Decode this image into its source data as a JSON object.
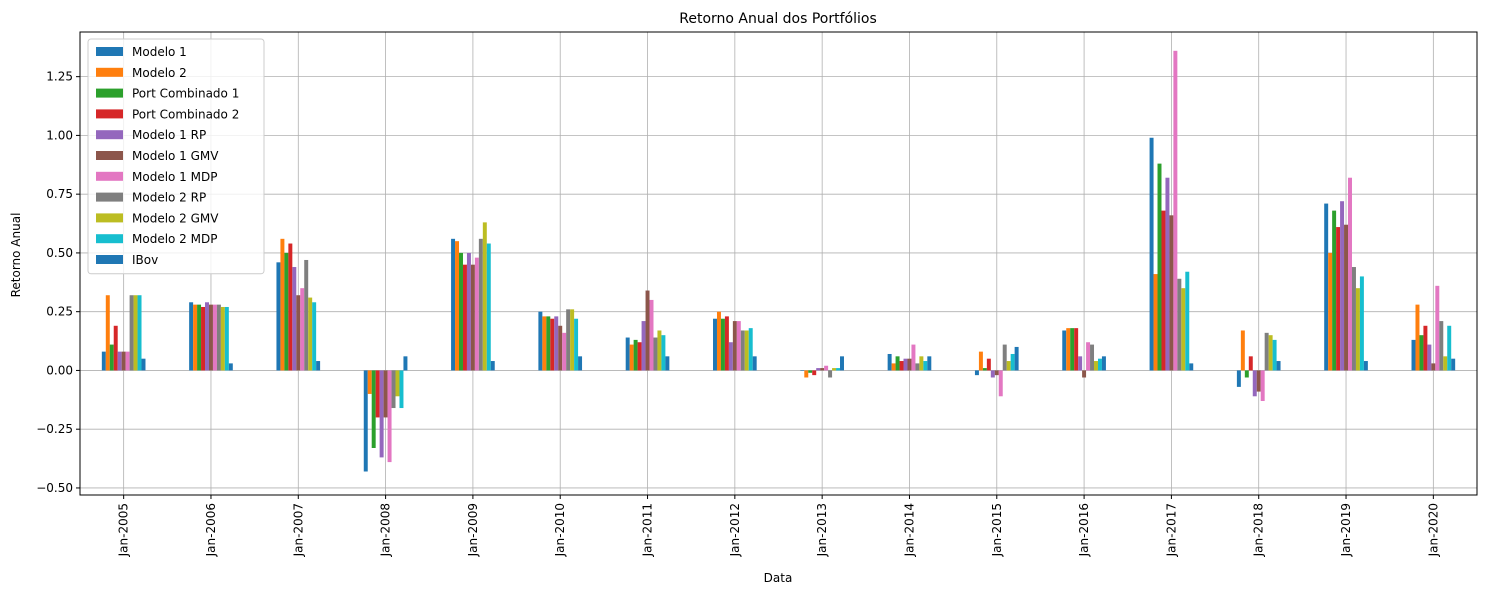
{
  "chart_data": {
    "type": "bar",
    "title": "Retorno Anual dos Portfólios",
    "xlabel": "Data",
    "ylabel": "Retorno Anual",
    "ylim": [
      -0.53,
      1.44
    ],
    "yticks": [
      -0.5,
      -0.25,
      0.0,
      0.25,
      0.5,
      0.75,
      1.0,
      1.25
    ],
    "ytick_labels": [
      "−0.50",
      "−0.25",
      "0.00",
      "0.25",
      "0.50",
      "0.75",
      "1.00",
      "1.25"
    ],
    "grid": true,
    "legend_position": "upper-left",
    "categories": [
      "Jan-2005",
      "Jan-2006",
      "Jan-2007",
      "Jan-2008",
      "Jan-2009",
      "Jan-2010",
      "Jan-2011",
      "Jan-2012",
      "Jan-2013",
      "Jan-2014",
      "Jan-2015",
      "Jan-2016",
      "Jan-2017",
      "Jan-2018",
      "Jan-2019",
      "Jan-2020"
    ],
    "series": [
      {
        "name": "Modelo 1",
        "color": "#1f77b4",
        "values": [
          0.08,
          0.29,
          0.46,
          -0.43,
          0.56,
          0.25,
          0.14,
          0.22,
          0.0,
          0.07,
          -0.02,
          0.17,
          0.99,
          -0.07,
          0.71,
          0.13
        ]
      },
      {
        "name": "Modelo 2",
        "color": "#ff7f0e",
        "values": [
          0.32,
          0.28,
          0.56,
          -0.1,
          0.55,
          0.23,
          0.11,
          0.25,
          -0.03,
          0.03,
          0.08,
          0.18,
          0.41,
          0.17,
          0.5,
          0.28
        ]
      },
      {
        "name": "Port Combinado 1",
        "color": "#2ca02c",
        "values": [
          0.11,
          0.28,
          0.5,
          -0.33,
          0.5,
          0.23,
          0.13,
          0.22,
          -0.01,
          0.06,
          0.01,
          0.18,
          0.88,
          -0.03,
          0.68,
          0.15
        ]
      },
      {
        "name": "Port Combinado 2",
        "color": "#d62728",
        "values": [
          0.19,
          0.27,
          0.54,
          -0.2,
          0.45,
          0.22,
          0.12,
          0.23,
          -0.02,
          0.04,
          0.05,
          0.18,
          0.68,
          0.06,
          0.61,
          0.19
        ]
      },
      {
        "name": "Modelo 1 RP",
        "color": "#9467bd",
        "values": [
          0.08,
          0.29,
          0.44,
          -0.37,
          0.5,
          0.23,
          0.21,
          0.12,
          0.01,
          0.05,
          -0.03,
          0.06,
          0.82,
          -0.11,
          0.72,
          0.11
        ]
      },
      {
        "name": "Modelo 1 GMV",
        "color": "#8c564b",
        "values": [
          0.08,
          0.28,
          0.32,
          -0.2,
          0.45,
          0.19,
          0.34,
          0.21,
          0.01,
          0.05,
          -0.02,
          -0.03,
          0.66,
          -0.09,
          0.62,
          0.03
        ]
      },
      {
        "name": "Modelo 1 MDP",
        "color": "#e377c2",
        "values": [
          0.08,
          0.28,
          0.35,
          -0.39,
          0.48,
          0.16,
          0.3,
          0.21,
          0.02,
          0.11,
          -0.11,
          0.12,
          1.36,
          -0.13,
          0.82,
          0.36
        ]
      },
      {
        "name": "Modelo 2 RP",
        "color": "#7f7f7f",
        "values": [
          0.32,
          0.28,
          0.47,
          -0.16,
          0.56,
          0.26,
          0.14,
          0.17,
          -0.03,
          0.03,
          0.11,
          0.11,
          0.39,
          0.16,
          0.44,
          0.21
        ]
      },
      {
        "name": "Modelo 2 GMV",
        "color": "#bcbd22",
        "values": [
          0.32,
          0.27,
          0.31,
          -0.11,
          0.63,
          0.26,
          0.17,
          0.17,
          0.01,
          0.06,
          0.04,
          0.04,
          0.35,
          0.15,
          0.35,
          0.06
        ]
      },
      {
        "name": "Modelo 2 MDP",
        "color": "#17becf",
        "values": [
          0.32,
          0.27,
          0.29,
          -0.16,
          0.54,
          0.22,
          0.15,
          0.18,
          0.01,
          0.04,
          0.07,
          0.05,
          0.42,
          0.13,
          0.4,
          0.19
        ]
      },
      {
        "name": "IBov",
        "color": "#1f77b4",
        "values": [
          0.05,
          0.03,
          0.04,
          0.06,
          0.04,
          0.06,
          0.06,
          0.06,
          0.06,
          0.06,
          0.1,
          0.06,
          0.03,
          0.04,
          0.04,
          0.05
        ]
      }
    ]
  }
}
